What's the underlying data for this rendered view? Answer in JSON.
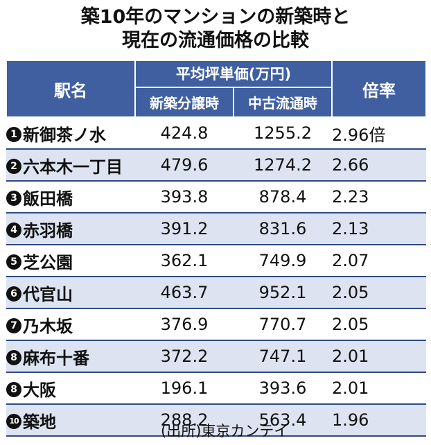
{
  "title": {
    "line1": "築10年のマンションの新築時と",
    "line2": "現在の流通価格の比較"
  },
  "table": {
    "headers": {
      "station": "駅名",
      "avg_price": "平均坪単価(万円)",
      "new_sale": "新築分譲時",
      "used_market": "中古流通時",
      "ratio": "倍率"
    },
    "rows": [
      {
        "rank": "1",
        "station": "新御茶ノ水",
        "new_price": "424.8",
        "used_price": "1255.2",
        "ratio": "2.96倍"
      },
      {
        "rank": "2",
        "station": "六本木一丁目",
        "new_price": "479.6",
        "used_price": "1274.2",
        "ratio": "2.66"
      },
      {
        "rank": "3",
        "station": "飯田橋",
        "new_price": "393.8",
        "used_price": "878.4",
        "ratio": "2.23"
      },
      {
        "rank": "4",
        "station": "赤羽橋",
        "new_price": "391.2",
        "used_price": "831.6",
        "ratio": "2.13"
      },
      {
        "rank": "5",
        "station": "芝公園",
        "new_price": "362.1",
        "used_price": "749.9",
        "ratio": "2.07"
      },
      {
        "rank": "6",
        "station": "代官山",
        "new_price": "463.7",
        "used_price": "952.1",
        "ratio": "2.05"
      },
      {
        "rank": "7",
        "station": "乃木坂",
        "new_price": "376.9",
        "used_price": "770.7",
        "ratio": "2.05"
      },
      {
        "rank": "8",
        "station": "麻布十番",
        "new_price": "372.2",
        "used_price": "747.1",
        "ratio": "2.01"
      },
      {
        "rank": "8",
        "station": "大阪",
        "new_price": "196.1",
        "used_price": "393.6",
        "ratio": "2.01"
      },
      {
        "rank": "10",
        "station": "築地",
        "new_price": "288.2",
        "used_price": "563.4",
        "ratio": "1.96"
      }
    ]
  },
  "source": "(出所)東京カンテイ"
}
